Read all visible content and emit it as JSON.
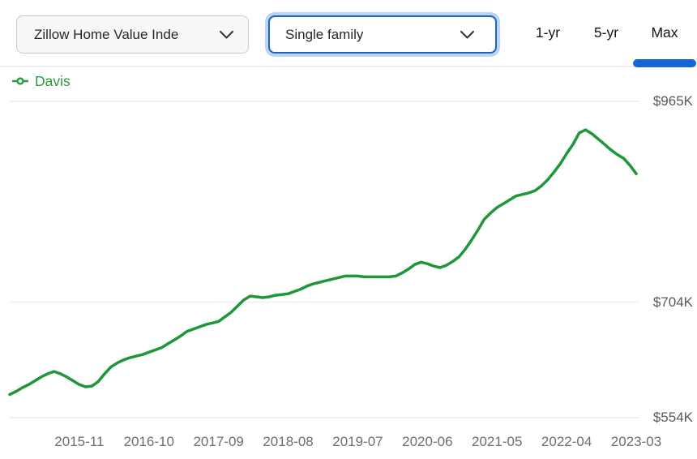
{
  "header": {
    "metric_dropdown": {
      "value": "Zillow Home Value Inde"
    },
    "home_type_dropdown": {
      "value": "Single family"
    },
    "range_tabs": [
      {
        "label": "1-yr",
        "active": false
      },
      {
        "label": "5-yr",
        "active": false
      },
      {
        "label": "Max",
        "active": true
      }
    ]
  },
  "legend": {
    "series_label": "Davis"
  },
  "colors": {
    "series_green": "#1e9738",
    "legend_green": "#2b9b3c",
    "gridline": "#f2f2f4",
    "active_tab_blue": "#1565d8",
    "focus_border_blue": "#1b63c5",
    "focus_glow_blue": "#b9d5f3"
  },
  "chart_data": {
    "type": "line",
    "title": "Zillow Home Value Index — Single family — Max range",
    "series": [
      {
        "name": "Davis",
        "unit": "USD thousands",
        "start_month": "2014-12",
        "end_month": "2023-03",
        "values": [
          584,
          588,
          593,
          597,
          602,
          607,
          611,
          614,
          611,
          607,
          602,
          597,
          594,
          595,
          601,
          611,
          620,
          625,
          629,
          632,
          634,
          636,
          639,
          642,
          645,
          650,
          655,
          660,
          666,
          669,
          672,
          675,
          677,
          679,
          685,
          691,
          699,
          707,
          712,
          711,
          710,
          711,
          713,
          714,
          715,
          718,
          721,
          725,
          728,
          730,
          732,
          734,
          736,
          738,
          738,
          738,
          737,
          737,
          737,
          737,
          737,
          738,
          742,
          747,
          753,
          756,
          754,
          751,
          749,
          752,
          757,
          763,
          773,
          785,
          798,
          812,
          820,
          827,
          832,
          837,
          842,
          844,
          846,
          849,
          855,
          863,
          873,
          884,
          897,
          909,
          924,
          928,
          923,
          916,
          909,
          902,
          896,
          891,
          882,
          871
        ]
      }
    ],
    "y_ticks": [
      {
        "label": "$965K",
        "value": 965
      },
      {
        "label": "$704K",
        "value": 704
      },
      {
        "label": "$554K",
        "value": 554
      }
    ],
    "x_ticks": [
      {
        "label": "2015-11",
        "index": 11
      },
      {
        "label": "2016-10",
        "index": 22
      },
      {
        "label": "2017-09",
        "index": 33
      },
      {
        "label": "2018-08",
        "index": 44
      },
      {
        "label": "2019-07",
        "index": 55
      },
      {
        "label": "2020-06",
        "index": 66
      },
      {
        "label": "2021-05",
        "index": 77
      },
      {
        "label": "2022-04",
        "index": 88
      },
      {
        "label": "2023-03",
        "index": 99
      }
    ],
    "ylim": [
      554,
      965
    ],
    "grid": "horizontal-only",
    "legend_position": "top-left"
  }
}
